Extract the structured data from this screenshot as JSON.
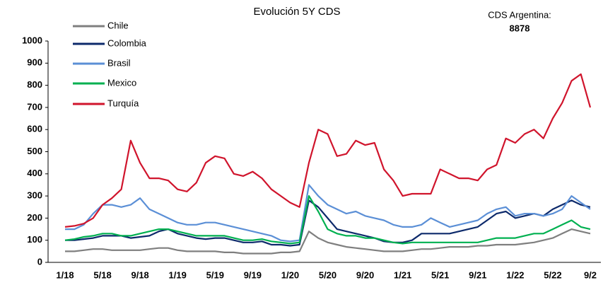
{
  "chart_data": {
    "type": "line",
    "title": "Evolución 5Y CDS",
    "annotations": [
      "CDS Argentina:",
      "8878"
    ],
    "categories": [
      "1/18",
      null,
      null,
      null,
      "5/18",
      null,
      null,
      null,
      "9/18",
      null,
      null,
      null,
      "1/19",
      null,
      null,
      null,
      "5/19",
      null,
      null,
      null,
      "9/19",
      null,
      null,
      null,
      "1/20",
      null,
      null,
      null,
      "5/20",
      null,
      null,
      null,
      "9/20",
      null,
      null,
      null,
      "1/21",
      null,
      null,
      null,
      "5/21",
      null,
      null,
      null,
      "9/21",
      null,
      null,
      null,
      "1/22",
      null,
      null,
      null,
      "5/22",
      null,
      null,
      null,
      "9/2"
    ],
    "series": [
      {
        "name": "Chile",
        "color": "#7f7f7f",
        "values": [
          50,
          50,
          55,
          60,
          60,
          55,
          55,
          55,
          55,
          60,
          65,
          65,
          55,
          50,
          50,
          50,
          50,
          45,
          45,
          40,
          40,
          40,
          40,
          45,
          45,
          50,
          140,
          110,
          90,
          80,
          70,
          65,
          60,
          55,
          50,
          50,
          50,
          55,
          60,
          60,
          65,
          70,
          70,
          70,
          75,
          75,
          80,
          80,
          80,
          85,
          90,
          100,
          110,
          130,
          150,
          140,
          130
        ]
      },
      {
        "name": "Colombia",
        "color": "#0d2a6b",
        "values": [
          100,
          100,
          105,
          110,
          120,
          120,
          120,
          110,
          115,
          120,
          140,
          150,
          130,
          120,
          110,
          105,
          110,
          110,
          100,
          90,
          90,
          95,
          80,
          80,
          75,
          80,
          280,
          250,
          200,
          150,
          140,
          130,
          120,
          110,
          95,
          90,
          90,
          100,
          130,
          130,
          130,
          130,
          140,
          150,
          160,
          190,
          220,
          230,
          200,
          210,
          220,
          210,
          240,
          260,
          280,
          260,
          250
        ]
      },
      {
        "name": "Brasil",
        "color": "#5b8fd6",
        "values": [
          150,
          150,
          170,
          220,
          260,
          260,
          250,
          260,
          290,
          240,
          220,
          200,
          180,
          170,
          170,
          180,
          180,
          170,
          160,
          150,
          140,
          130,
          120,
          100,
          95,
          100,
          350,
          300,
          260,
          240,
          220,
          230,
          210,
          200,
          190,
          170,
          160,
          160,
          170,
          200,
          180,
          160,
          170,
          180,
          190,
          220,
          240,
          250,
          210,
          220,
          220,
          210,
          220,
          240,
          300,
          270,
          240
        ]
      },
      {
        "name": "Mexico",
        "color": "#00b050",
        "values": [
          100,
          105,
          115,
          120,
          130,
          130,
          120,
          120,
          130,
          140,
          150,
          150,
          140,
          130,
          120,
          120,
          120,
          120,
          110,
          100,
          100,
          105,
          95,
          90,
          85,
          90,
          300,
          230,
          150,
          130,
          120,
          120,
          110,
          110,
          100,
          90,
          85,
          90,
          90,
          90,
          90,
          90,
          90,
          90,
          90,
          100,
          110,
          110,
          110,
          120,
          130,
          130,
          150,
          170,
          190,
          160,
          150
        ]
      },
      {
        "name": "Turquía",
        "color": "#d0142c",
        "values": [
          160,
          165,
          175,
          200,
          260,
          290,
          330,
          550,
          450,
          380,
          380,
          370,
          330,
          320,
          360,
          450,
          480,
          470,
          400,
          390,
          410,
          380,
          330,
          300,
          270,
          250,
          450,
          600,
          580,
          480,
          490,
          550,
          530,
          540,
          420,
          370,
          300,
          310,
          310,
          310,
          420,
          400,
          380,
          380,
          370,
          420,
          440,
          560,
          540,
          580,
          600,
          560,
          650,
          720,
          820,
          850,
          700
        ]
      }
    ],
    "ylim": [
      0,
      1000
    ],
    "yticks": [
      0,
      100,
      200,
      300,
      400,
      500,
      600,
      700,
      800,
      900,
      1000
    ],
    "grid": false
  }
}
